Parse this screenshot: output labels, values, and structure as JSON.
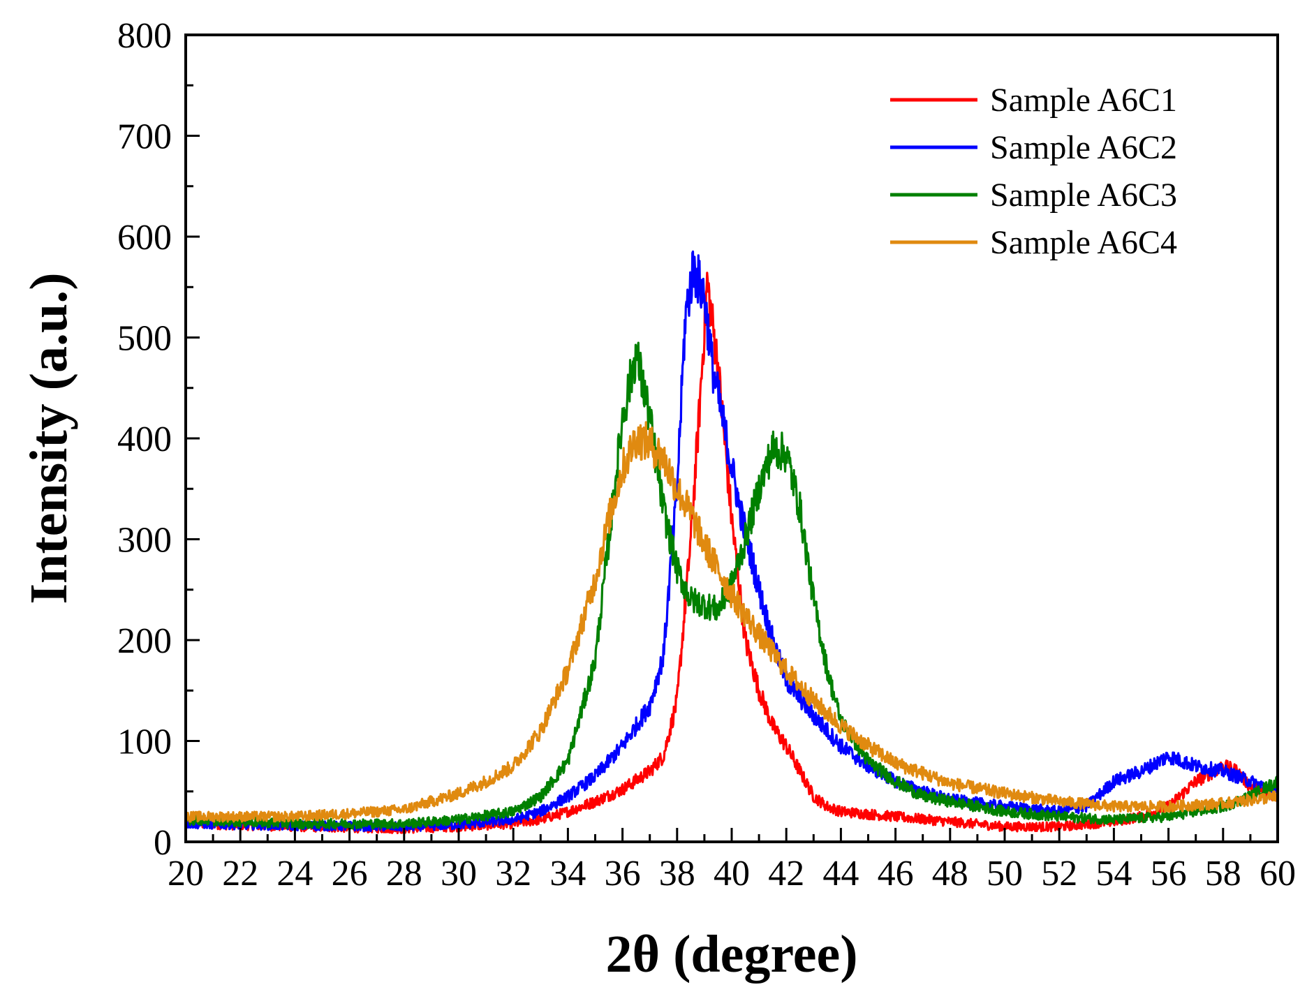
{
  "chart_data": {
    "type": "line",
    "title": "",
    "xlabel": "2θ (degree)",
    "ylabel": "Intensity (a.u.)",
    "xlim": [
      20,
      60
    ],
    "ylim": [
      0,
      800
    ],
    "xticks": [
      "20",
      "22",
      "24",
      "26",
      "28",
      "30",
      "32",
      "34",
      "36",
      "38",
      "40",
      "42",
      "44",
      "46",
      "48",
      "50",
      "52",
      "54",
      "56",
      "58",
      "60"
    ],
    "yticks": [
      "0",
      "100",
      "200",
      "300",
      "400",
      "500",
      "600",
      "700",
      "800"
    ],
    "grid": false,
    "legend_position": "top-right",
    "series": [
      {
        "name": "Sample A6C1",
        "color": "#ff0000",
        "points": [
          [
            20,
            18
          ],
          [
            24,
            15
          ],
          [
            28,
            13
          ],
          [
            30,
            15
          ],
          [
            32,
            18
          ],
          [
            33,
            22
          ],
          [
            34,
            30
          ],
          [
            35,
            40
          ],
          [
            36,
            52
          ],
          [
            37,
            70
          ],
          [
            37.5,
            85
          ],
          [
            38,
            140
          ],
          [
            38.5,
            300
          ],
          [
            38.8,
            420
          ],
          [
            39.1,
            555
          ],
          [
            39.5,
            470
          ],
          [
            40,
            320
          ],
          [
            40.5,
            200
          ],
          [
            41,
            150
          ],
          [
            41.5,
            115
          ],
          [
            42,
            95
          ],
          [
            42.5,
            70
          ],
          [
            43,
            45
          ],
          [
            43.5,
            35
          ],
          [
            44,
            30
          ],
          [
            46,
            25
          ],
          [
            48,
            20
          ],
          [
            50,
            15
          ],
          [
            52,
            15
          ],
          [
            54,
            20
          ],
          [
            55,
            25
          ],
          [
            56,
            35
          ],
          [
            57,
            60
          ],
          [
            58,
            75
          ],
          [
            58.5,
            70
          ],
          [
            59,
            55
          ],
          [
            60,
            45
          ]
        ]
      },
      {
        "name": "Sample A6C2",
        "color": "#0000ff",
        "points": [
          [
            20,
            18
          ],
          [
            24,
            16
          ],
          [
            28,
            15
          ],
          [
            30,
            17
          ],
          [
            32,
            22
          ],
          [
            33,
            30
          ],
          [
            34,
            45
          ],
          [
            35,
            65
          ],
          [
            36,
            95
          ],
          [
            37,
            135
          ],
          [
            37.5,
            185
          ],
          [
            38,
            350
          ],
          [
            38.3,
            520
          ],
          [
            38.6,
            570
          ],
          [
            39,
            540
          ],
          [
            39.3,
            470
          ],
          [
            39.8,
            400
          ],
          [
            40.3,
            330
          ],
          [
            41,
            250
          ],
          [
            41.5,
            200
          ],
          [
            42,
            160
          ],
          [
            43,
            125
          ],
          [
            44,
            95
          ],
          [
            45,
            75
          ],
          [
            46,
            60
          ],
          [
            47,
            50
          ],
          [
            48,
            42
          ],
          [
            50,
            35
          ],
          [
            52,
            30
          ],
          [
            53,
            35
          ],
          [
            54,
            60
          ],
          [
            55,
            70
          ],
          [
            56,
            85
          ],
          [
            57,
            75
          ],
          [
            58,
            70
          ],
          [
            59,
            60
          ],
          [
            60,
            50
          ]
        ]
      },
      {
        "name": "Sample A6C3",
        "color": "#008000",
        "points": [
          [
            20,
            22
          ],
          [
            24,
            18
          ],
          [
            28,
            18
          ],
          [
            30,
            22
          ],
          [
            32,
            30
          ],
          [
            33,
            45
          ],
          [
            34,
            80
          ],
          [
            35,
            180
          ],
          [
            35.5,
            300
          ],
          [
            36,
            420
          ],
          [
            36.5,
            485
          ],
          [
            37,
            420
          ],
          [
            37.5,
            330
          ],
          [
            38,
            270
          ],
          [
            38.5,
            240
          ],
          [
            39,
            235
          ],
          [
            39.5,
            230
          ],
          [
            40,
            255
          ],
          [
            40.5,
            300
          ],
          [
            41,
            350
          ],
          [
            41.5,
            390
          ],
          [
            42,
            385
          ],
          [
            42.5,
            330
          ],
          [
            43,
            240
          ],
          [
            43.5,
            170
          ],
          [
            44,
            120
          ],
          [
            45,
            80
          ],
          [
            46,
            60
          ],
          [
            47,
            45
          ],
          [
            48,
            40
          ],
          [
            50,
            30
          ],
          [
            52,
            25
          ],
          [
            54,
            22
          ],
          [
            56,
            25
          ],
          [
            58,
            35
          ],
          [
            59,
            45
          ],
          [
            60,
            60
          ]
        ]
      },
      {
        "name": "Sample A6C4",
        "color": "#e08a10",
        "points": [
          [
            20,
            25
          ],
          [
            22,
            25
          ],
          [
            24,
            25
          ],
          [
            26,
            28
          ],
          [
            28,
            32
          ],
          [
            29,
            40
          ],
          [
            30,
            48
          ],
          [
            31,
            60
          ],
          [
            32,
            75
          ],
          [
            33,
            110
          ],
          [
            34,
            170
          ],
          [
            35,
            260
          ],
          [
            35.5,
            320
          ],
          [
            36,
            370
          ],
          [
            36.5,
            400
          ],
          [
            37,
            395
          ],
          [
            37.5,
            380
          ],
          [
            38,
            350
          ],
          [
            38.5,
            325
          ],
          [
            39,
            295
          ],
          [
            39.5,
            270
          ],
          [
            40,
            245
          ],
          [
            41,
            205
          ],
          [
            42,
            170
          ],
          [
            43,
            140
          ],
          [
            44,
            115
          ],
          [
            45,
            95
          ],
          [
            46,
            78
          ],
          [
            47,
            68
          ],
          [
            48,
            58
          ],
          [
            50,
            48
          ],
          [
            52,
            40
          ],
          [
            54,
            35
          ],
          [
            56,
            35
          ],
          [
            58,
            38
          ],
          [
            60,
            45
          ]
        ]
      }
    ]
  }
}
